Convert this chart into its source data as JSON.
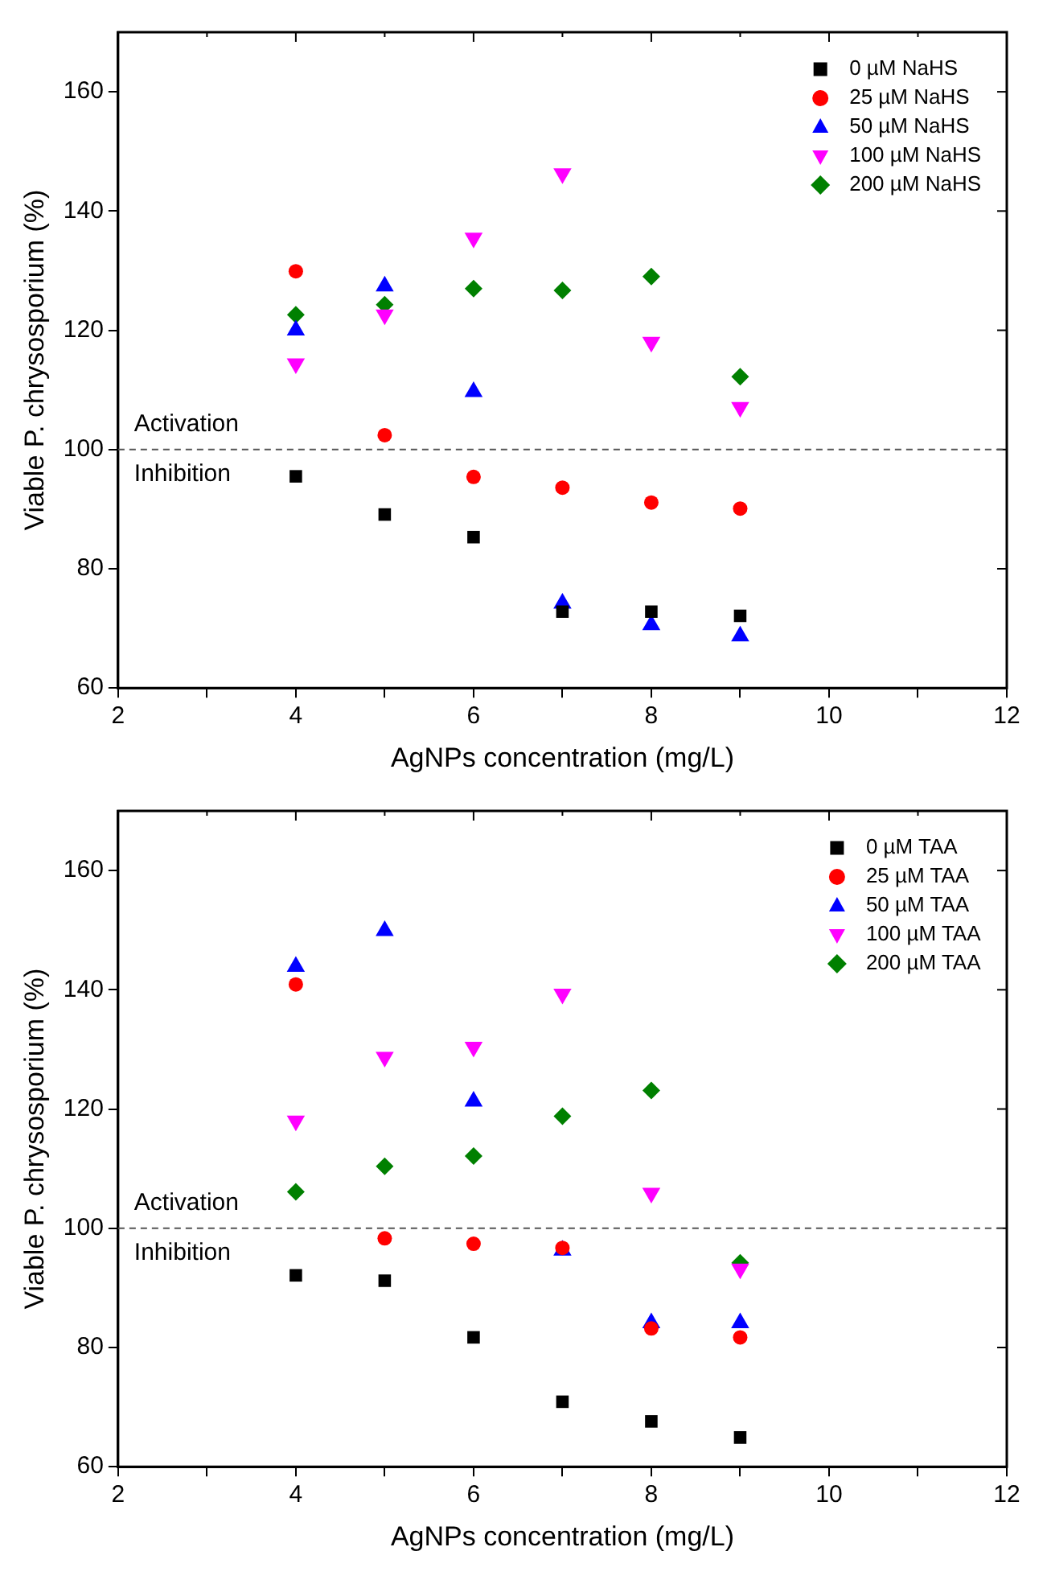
{
  "chart_data": [
    {
      "type": "scatter",
      "xlabel": "AgNPs concentration (mg/L)",
      "ylabel": "Viable P. chrysosporium (%)",
      "x": [
        4,
        5,
        6,
        7,
        8,
        9
      ],
      "xlim": [
        2,
        12
      ],
      "xticks": [
        2,
        {
          "value": 3,
          "label": null
        },
        4,
        {
          "value": 5,
          "label": null
        },
        6,
        {
          "value": 7,
          "label": null
        },
        8,
        {
          "value": 9,
          "label": null
        },
        10,
        {
          "value": 11,
          "label": null
        },
        12
      ],
      "ylim": [
        60,
        170
      ],
      "yticks": [
        60,
        80,
        100,
        120,
        140,
        160
      ],
      "grid": false,
      "legend": "top right",
      "annotations": [
        "Activation",
        "Inhibition"
      ],
      "ref_lines": [
        {
          "axis": "y",
          "value": 100,
          "color": "#555555",
          "line_style": "dashed"
        }
      ],
      "series": [
        {
          "name": "0 µM NaHS",
          "color": "#000000",
          "marker": "square",
          "values": [
            95.5,
            89.1,
            85.3,
            72.8,
            72.8,
            72.1
          ]
        },
        {
          "name": "25 µM NaHS",
          "color": "#ff0000",
          "marker": "circle",
          "values": [
            129.9,
            102.4,
            95.4,
            93.6,
            91.1,
            90.1
          ]
        },
        {
          "name": "50 µM NaHS",
          "color": "#0000ff",
          "marker": "triangle",
          "values": [
            120,
            127.4,
            109.7,
            74.2,
            70.6,
            68.7
          ]
        },
        {
          "name": "100 µM NaHS",
          "color": "#ff00ff",
          "marker": "triangle-down",
          "values": [
            114.4,
            122.6,
            135.5,
            146.3,
            118,
            107.1
          ]
        },
        {
          "name": "200 µM NaHS",
          "color": "#008000",
          "marker": "diamond",
          "values": [
            122.6,
            124.3,
            127,
            126.7,
            129,
            112.2
          ]
        }
      ]
    },
    {
      "type": "scatter",
      "xlabel": "AgNPs concentration (mg/L)",
      "ylabel": "Viable P. chrysosporium (%)",
      "x": [
        4,
        5,
        6,
        7,
        8,
        9
      ],
      "xlim": [
        2,
        12
      ],
      "xticks": [
        2,
        {
          "value": 3,
          "label": null
        },
        4,
        {
          "value": 5,
          "label": null
        },
        6,
        {
          "value": 7,
          "label": null
        },
        8,
        {
          "value": 9,
          "label": null
        },
        10,
        {
          "value": 11,
          "label": null
        },
        12
      ],
      "ylim": [
        60,
        170
      ],
      "yticks": [
        60,
        80,
        100,
        120,
        140,
        160
      ],
      "grid": false,
      "legend": "top right",
      "annotations": [
        "Activation",
        "Inhibition"
      ],
      "ref_lines": [
        {
          "axis": "y",
          "value": 100,
          "color": "#555555",
          "line_style": "dashed"
        }
      ],
      "series": [
        {
          "name": "0 µM TAA",
          "color": "#000000",
          "marker": "square",
          "values": [
            92.1,
            91.2,
            81.7,
            70.9,
            67.6,
            64.9
          ]
        },
        {
          "name": "25 µM TAA",
          "color": "#ff0000",
          "marker": "circle",
          "values": [
            140.9,
            98.3,
            97.4,
            96.7,
            83.2,
            81.7
          ]
        },
        {
          "name": "50 µM TAA",
          "color": "#0000ff",
          "marker": "triangle",
          "values": [
            143.9,
            149.9,
            121.3,
            96.3,
            84.1,
            84.1
          ]
        },
        {
          "name": "100 µM TAA",
          "color": "#ff00ff",
          "marker": "triangle-down",
          "values": [
            118,
            128.7,
            130.4,
            139.3,
            105.9,
            93.2
          ]
        },
        {
          "name": "200 µM TAA",
          "color": "#008000",
          "marker": "diamond",
          "values": [
            106.1,
            110.4,
            112.1,
            118.8,
            123.1,
            94.2
          ]
        }
      ]
    }
  ]
}
